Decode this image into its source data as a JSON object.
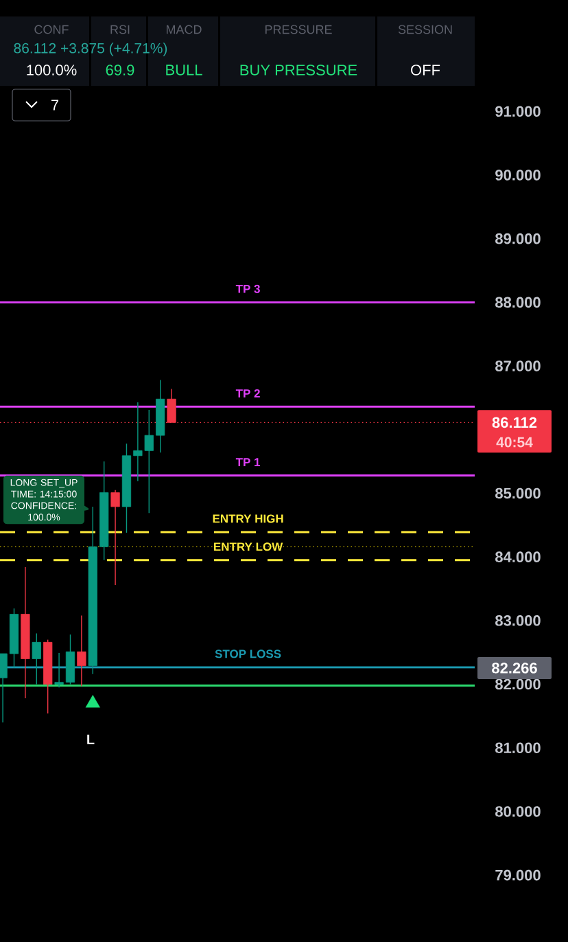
{
  "chart_data": {
    "type": "candlestick",
    "categories": [
      null,
      null,
      null,
      null,
      null,
      null,
      null,
      null,
      null,
      null,
      null,
      null,
      null,
      null,
      null,
      null,
      null,
      null,
      null,
      null,
      null,
      null,
      null,
      null,
      null,
      null,
      null,
      null,
      null,
      null,
      null,
      null,
      null,
      null,
      null,
      null,
      null,
      null,
      null,
      null,
      null,
      null
    ],
    "series": [
      {
        "type": "candlestick",
        "ohlc": [
          [
            82.1,
            82.48,
            81.4,
            82.48
          ],
          [
            82.48,
            83.19,
            82.26,
            83.1
          ],
          [
            83.1,
            83.84,
            81.78,
            82.4
          ],
          [
            82.4,
            82.8,
            82.0,
            82.66
          ],
          [
            82.66,
            82.7,
            81.54,
            82.0
          ],
          [
            82.0,
            82.49,
            81.95,
            82.03
          ],
          [
            82.03,
            82.78,
            82.0,
            82.51
          ],
          [
            82.51,
            83.08,
            81.97,
            82.29
          ],
          [
            82.29,
            84.79,
            82.16,
            84.16
          ],
          [
            84.16,
            85.5,
            83.95,
            85.01
          ],
          [
            85.01,
            85.05,
            83.56,
            84.79
          ],
          [
            84.79,
            85.78,
            84.38,
            85.59
          ],
          [
            85.59,
            86.43,
            85.19,
            85.67
          ],
          [
            85.67,
            86.31,
            84.69,
            85.91
          ],
          [
            85.91,
            86.78,
            85.64,
            86.48
          ],
          [
            86.48,
            86.64,
            86.112,
            86.112
          ],
          null,
          null,
          null,
          null,
          null,
          null,
          null,
          null,
          null,
          null,
          null,
          null,
          null,
          null,
          null,
          null,
          null,
          null,
          null,
          null,
          null,
          null,
          null,
          null,
          null,
          null
        ],
        "colors": [
          "#089981",
          "#089981",
          "#f23645",
          "#089981",
          "#f23645",
          "#089981",
          "#089981",
          "#f23645",
          "#089981",
          "#089981",
          "#f23645",
          "#089981",
          "#089981",
          "#089981",
          "#089981",
          "#f23645",
          null,
          null,
          null,
          null,
          null,
          null,
          null,
          null,
          null,
          null,
          null,
          null,
          null,
          null,
          null,
          null,
          null,
          null,
          null,
          null,
          null,
          null,
          null,
          null,
          null,
          null
        ]
      },
      {
        "type": "scatter",
        "marker": "triangle",
        "color": "#1de27a",
        "values": [
          null,
          null,
          null,
          null,
          null,
          null,
          null,
          null,
          81.7,
          null,
          null,
          null,
          null,
          null,
          null,
          null,
          null,
          null,
          null,
          null,
          null,
          null,
          null,
          null,
          null,
          null,
          null,
          null,
          null,
          null,
          null,
          null,
          null,
          null,
          null,
          null,
          null,
          null,
          null,
          null,
          null,
          null
        ]
      }
    ],
    "ylim": [
      77.95,
      92.75
    ],
    "yticks": [
      {
        "value": 79,
        "label": "79.000"
      },
      {
        "value": 80,
        "label": "80.000"
      },
      {
        "value": 81,
        "label": "81.000"
      },
      {
        "value": 82,
        "label": "82.000"
      },
      {
        "value": 83,
        "label": "83.000"
      },
      {
        "value": 84,
        "label": "84.000"
      },
      {
        "value": 85,
        "label": "85.000"
      },
      {
        "value": 87,
        "label": "87.000"
      },
      {
        "value": 88,
        "label": "88.000"
      },
      {
        "value": 89,
        "label": "89.000"
      },
      {
        "value": 90,
        "label": "90.000"
      },
      {
        "value": 91,
        "label": "91.000"
      }
    ],
    "tick_labels": "y",
    "ref_lines": [
      {
        "axis": "y",
        "value": 88.0,
        "label": "TP 3",
        "color": "#e040fb",
        "line_style": "solid"
      },
      {
        "axis": "y",
        "value": 86.36,
        "label": "TP 2",
        "color": "#e040fb",
        "line_style": "solid"
      },
      {
        "axis": "y",
        "value": 85.28,
        "label": "TP 1",
        "color": "#e040fb",
        "line_style": "solid"
      },
      {
        "axis": "y",
        "value": 84.39,
        "label": "ENTRY HIGH",
        "color": "#ffeb3b",
        "line_style": "dashed"
      },
      {
        "axis": "y",
        "value": 84.16,
        "color": "#c8b400",
        "line_style": "dotted"
      },
      {
        "axis": "y",
        "value": 83.95,
        "label": "ENTRY LOW",
        "color": "#ffeb3b",
        "line_style": "dashed"
      },
      {
        "axis": "y",
        "value": 86.112,
        "label": "86.112",
        "color": "#f23645",
        "line_style": "dotted"
      },
      {
        "axis": "y",
        "value": 82.266,
        "label": "STOP LOSS",
        "color": "#1b9bb2",
        "line_style": "solid"
      },
      {
        "axis": "y",
        "value": 81.98,
        "color": "#2bd96f",
        "line_style": "solid"
      }
    ],
    "annotations": [
      "86.112 +3.875 (+4.71%)",
      "CONF",
      "RSI",
      "MACD",
      "PRESSURE",
      "SESSION",
      "100.0%",
      "69.9",
      "BULL",
      "BUY PRESSURE",
      "OFF",
      "7",
      "LONG SET_UP",
      "TIME: 14:15:00",
      "CONFIDENCE: 100.0%",
      "L",
      "82.266",
      "40:54"
    ]
  }
}
